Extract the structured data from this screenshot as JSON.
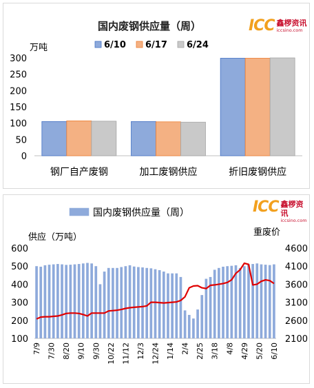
{
  "logo": {
    "mark": "ICC",
    "cn": "鑫椤资讯",
    "url": "iccsino.com"
  },
  "colors": {
    "blue": "#8eaadb",
    "blue_edge": "#4472c4",
    "orange": "#f4b183",
    "orange_edge": "#ed7d31",
    "gray": "#c9c9c9",
    "gray_edge": "#a5a5a5",
    "red": "#e00000"
  },
  "chart_data": [
    {
      "type": "bar",
      "title": "国内废钢供应量（周）",
      "ylabel": "万吨",
      "ylim": [
        0,
        300
      ],
      "yticks": [
        0,
        50,
        100,
        150,
        200,
        250,
        300
      ],
      "grid": false,
      "legend": "top",
      "categories": [
        "钢厂自产废钢",
        "加工废钢供应",
        "折旧废钢供应"
      ],
      "series": [
        {
          "name": "6/10",
          "values": [
            105,
            105,
            299
          ]
        },
        {
          "name": "6/17",
          "values": [
            107,
            104,
            299
          ]
        },
        {
          "name": "6/24",
          "values": [
            106,
            103,
            300
          ]
        }
      ]
    },
    {
      "type": "bar",
      "title": "国内废钢供应量（周）",
      "ylabel": "供应（万吨）",
      "y2label": "重废价",
      "ylim": [
        100,
        600
      ],
      "y2lim": [
        2100,
        4600
      ],
      "yticks": [
        100,
        200,
        300,
        400,
        500,
        600
      ],
      "y2ticks": [
        2100,
        2600,
        3100,
        3600,
        4100,
        4600
      ],
      "grid": false,
      "legend": "top",
      "xticklabels": [
        "7/9",
        "7/30",
        "8/20",
        "9/10",
        "9/30",
        "10/22",
        "11/12",
        "12/3",
        "12/24",
        "1/14",
        "2/4",
        "2/25",
        "3/18",
        "4/8",
        "4/29",
        "5/20",
        "6/10"
      ],
      "series": [
        {
          "name": "国内废钢供应量（周）",
          "axis": "left",
          "values": [
            500,
            497,
            505,
            508,
            510,
            512,
            510,
            507,
            508,
            510,
            512,
            515,
            518,
            515,
            500,
            400,
            470,
            490,
            490,
            490,
            495,
            500,
            505,
            498,
            495,
            493,
            490,
            488,
            483,
            478,
            470,
            460,
            460,
            460,
            440,
            255,
            230,
            210,
            260,
            340,
            430,
            440,
            480,
            490,
            497,
            500,
            502,
            505,
            490,
            500,
            510,
            512,
            515,
            510,
            508,
            506,
            510
          ]
        },
        {
          "name": "重废价",
          "axis": "right",
          "values": [
            2640,
            2690,
            2700,
            2700,
            2710,
            2720,
            2750,
            2790,
            2800,
            2800,
            2790,
            2760,
            2720,
            2800,
            2800,
            2800,
            2800,
            2860,
            2870,
            2880,
            2900,
            2930,
            2950,
            2960,
            2970,
            2980,
            3000,
            3100,
            3100,
            3090,
            3080,
            3090,
            3100,
            3110,
            3150,
            3250,
            3500,
            3550,
            3560,
            3500,
            3480,
            3570,
            3580,
            3600,
            3620,
            3650,
            3720,
            3900,
            4000,
            4180,
            4150,
            3580,
            3600,
            3680,
            3720,
            3700,
            3620
          ]
        }
      ]
    }
  ]
}
